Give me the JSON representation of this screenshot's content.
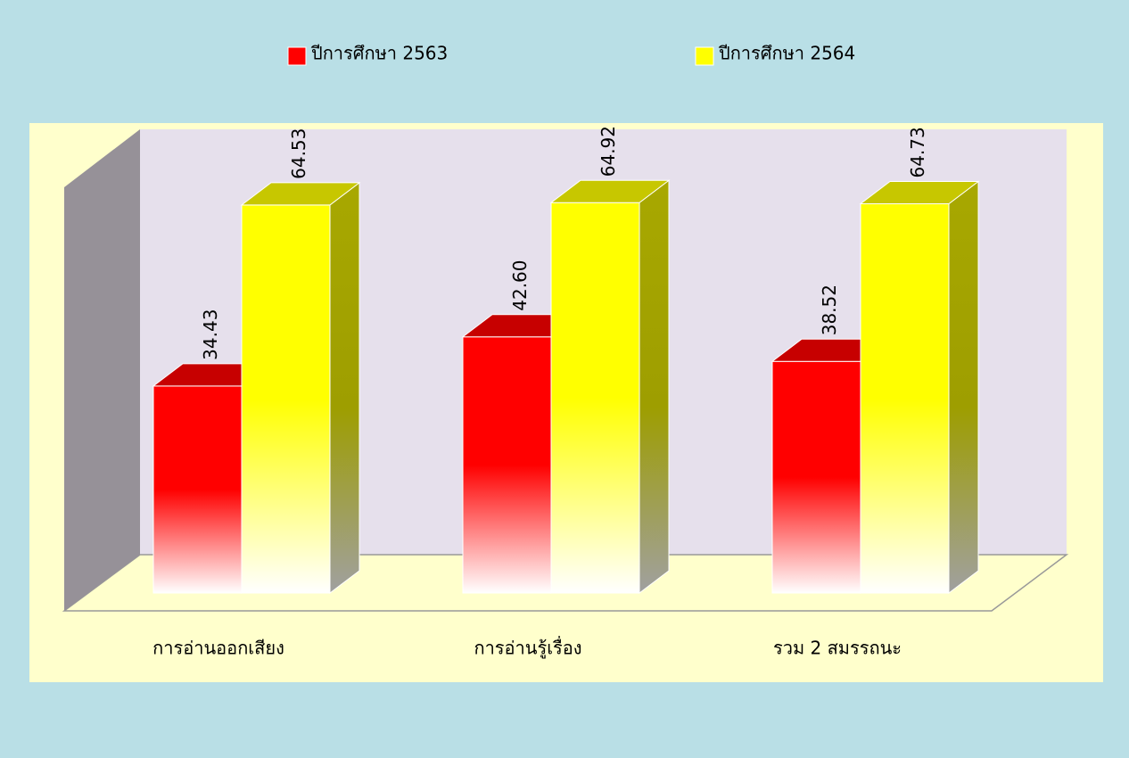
{
  "chart_data": {
    "type": "bar",
    "categories": [
      "การอ่านออกเสียง",
      "การอ่านรู้เรื่อง",
      "รวม 2 สมรรถนะ"
    ],
    "series": [
      {
        "name": "ปีการศึกษา 2563",
        "color": "#ff0000",
        "values": [
          34.43,
          42.6,
          38.52
        ],
        "value_labels": [
          "34.43",
          "42.60",
          "38.52"
        ]
      },
      {
        "name": "ปีการศึกษา 2564",
        "color": "#ffff00",
        "values": [
          64.53,
          64.92,
          64.73
        ]
      }
    ],
    "ylim": [
      0,
      70
    ],
    "legend": "top"
  }
}
